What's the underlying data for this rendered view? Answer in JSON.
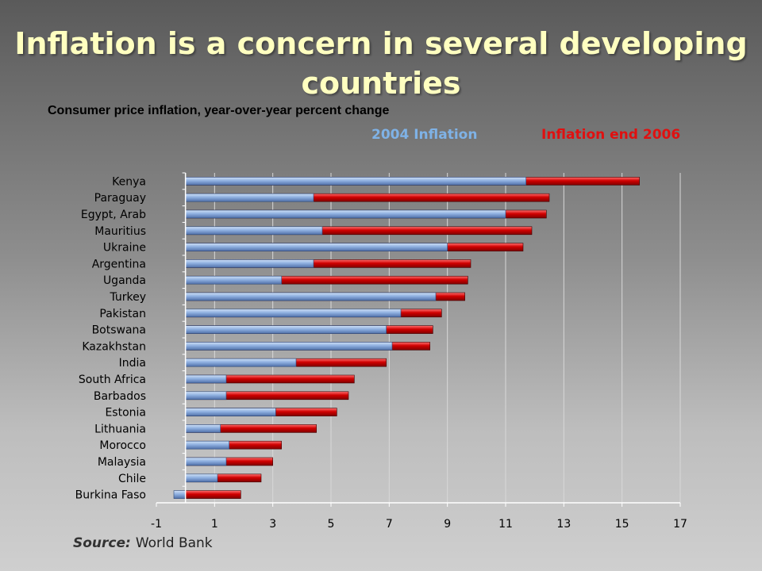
{
  "title": "Inflation is a concern in several developing countries",
  "subtitle": "Consumer price inflation, year-over-year percent change",
  "legend": {
    "series_2004": "2004 Inflation",
    "series_2006": "Inflation end 2006"
  },
  "source": {
    "label": "Source:",
    "text": "World Bank"
  },
  "colors": {
    "series_2004": "#8fb0e0",
    "series_2006": "#d00000",
    "title": "#ffffc0"
  },
  "chart_data": {
    "type": "bar",
    "orientation": "horizontal",
    "categories": [
      "Kenya",
      "Paraguay",
      "Egypt, Arab",
      "Mauritius",
      "Ukraine",
      "Argentina",
      "Uganda",
      "Turkey",
      "Pakistan",
      "Botswana",
      "Kazakhstan",
      "India",
      "South Africa",
      "Barbados",
      "Estonia",
      "Lithuania",
      "Morocco",
      "Malaysia",
      "Chile",
      "Burkina Faso"
    ],
    "series": [
      {
        "name": "2004 Inflation",
        "values": [
          11.7,
          4.4,
          11.0,
          4.7,
          9.0,
          4.4,
          3.3,
          8.6,
          7.4,
          6.9,
          7.1,
          3.8,
          1.4,
          1.4,
          3.1,
          1.2,
          1.5,
          1.4,
          1.1,
          -0.4
        ]
      },
      {
        "name": "Inflation end 2006",
        "values": [
          15.6,
          12.5,
          12.4,
          11.9,
          11.6,
          9.8,
          9.7,
          9.6,
          8.8,
          8.5,
          8.4,
          6.9,
          5.8,
          5.6,
          5.2,
          4.5,
          3.3,
          3.0,
          2.6,
          1.9
        ]
      }
    ],
    "xlim": [
      -1,
      17
    ],
    "xticks": [
      "-1",
      "1",
      "3",
      "5",
      "7",
      "9",
      "11",
      "13",
      "15",
      "17"
    ],
    "grid": true,
    "legend_position": "top"
  }
}
